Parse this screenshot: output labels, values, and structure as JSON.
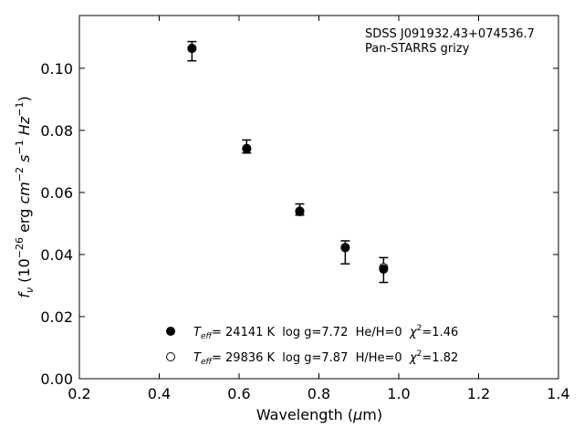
{
  "chart_data": {
    "type": "scatter",
    "annotations": [
      "SDSS J091932.43+074536.7",
      "Pan-STARRS grizy"
    ],
    "xlabel": {
      "main": "Wavelength (",
      "mu": "μ",
      "unit": "m)"
    },
    "ylabel": {
      "f": "f",
      "nu": "ν",
      "pre": " (10",
      "exp26": "−26",
      "erg": " erg ",
      "cm": "cm",
      "exp2": "−2",
      "s": " s",
      "exp1a": "−1",
      "hz": " Hz",
      "exp1b": "−1",
      "close": ")"
    },
    "xlim": [
      0.2,
      1.4
    ],
    "ylim": [
      0.0,
      0.117
    ],
    "xticks": [
      0.2,
      0.4,
      0.6,
      0.8,
      1.0,
      1.2,
      1.4
    ],
    "xtick_labels": [
      "0.2",
      "0.4",
      "0.6",
      "0.8",
      "1.0",
      "1.2",
      "1.4"
    ],
    "yticks": [
      0.0,
      0.02,
      0.04,
      0.06,
      0.08,
      0.1
    ],
    "ytick_labels": [
      "0.00",
      "0.02",
      "0.04",
      "0.06",
      "0.08",
      "0.10"
    ],
    "observed": {
      "x": [
        0.482,
        0.619,
        0.752,
        0.866,
        0.962
      ],
      "y": [
        0.1055,
        0.0748,
        0.0545,
        0.0407,
        0.035
      ],
      "yerr": [
        0.0031,
        0.0021,
        0.0018,
        0.0037,
        0.004
      ]
    },
    "series": [
      {
        "marker": "filled",
        "x": [
          0.482,
          0.619,
          0.752,
          0.866,
          0.962
        ],
        "y": [
          0.1064,
          0.074,
          0.0538,
          0.0422,
          0.0353
        ],
        "legend": {
          "T": "T",
          "eff": "eff",
          "rest": "= 24141 K  log g=7.72  He/H=0  ",
          "chi": "χ",
          "chi_exp": "2",
          "chi_val": "=1.46"
        }
      },
      {
        "marker": "open",
        "x": [
          0.482,
          0.619,
          0.752,
          0.866,
          0.962
        ],
        "y": [
          0.1064,
          0.0742,
          0.054,
          0.0423,
          0.0358
        ],
        "legend": {
          "T": "T",
          "eff": "eff",
          "rest": "= 29836 K  log g=7.87  H/He=0  ",
          "chi": "χ",
          "chi_exp": "2",
          "chi_val": "=1.82"
        }
      }
    ],
    "legend_position": "bottom-center",
    "grid": false
  }
}
